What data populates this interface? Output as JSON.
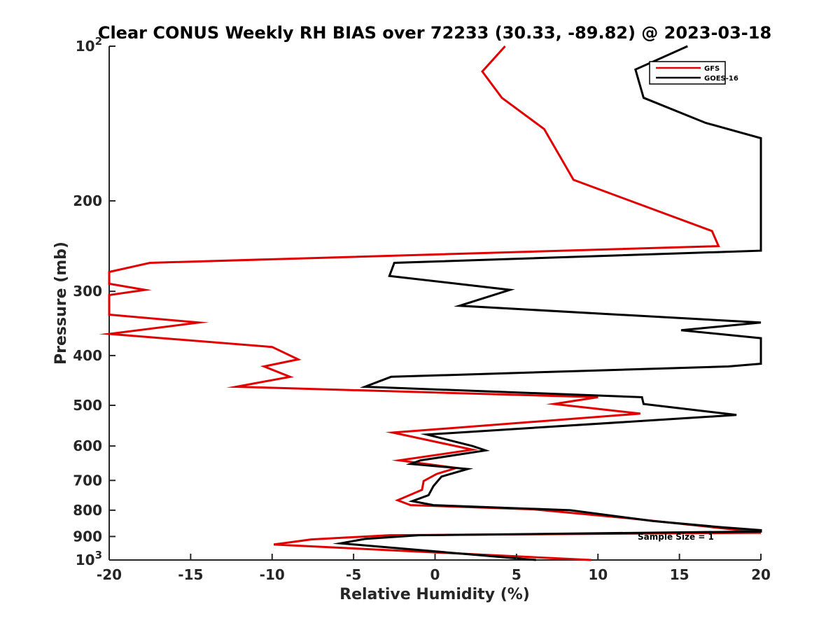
{
  "chart_data": {
    "type": "line",
    "title": "Clear CONUS Weekly RH BIAS over 72233 (30.33, -89.82) @ 2023-03-18",
    "xlabel": "Relative Humidity (%)",
    "ylabel": "Pressure (mb)",
    "xlim": [
      -20,
      20
    ],
    "ylim": [
      100,
      1000
    ],
    "y_scale": "log",
    "y_reversed": true,
    "x_ticks": [
      -20,
      -15,
      -10,
      -5,
      0,
      5,
      10,
      15,
      20
    ],
    "x_tick_labels": [
      "-20",
      "-15",
      "-10",
      "-5",
      "0",
      "5",
      "10",
      "15",
      "20"
    ],
    "y_ticks": [
      100,
      200,
      300,
      400,
      500,
      600,
      700,
      800,
      900,
      1000
    ],
    "y_tick_labels": [
      {
        "base": "10",
        "exp": "2"
      },
      {
        "base": "200",
        "exp": ""
      },
      {
        "base": "300",
        "exp": ""
      },
      {
        "base": "400",
        "exp": ""
      },
      {
        "base": "500",
        "exp": ""
      },
      {
        "base": "600",
        "exp": ""
      },
      {
        "base": "700",
        "exp": ""
      },
      {
        "base": "800",
        "exp": ""
      },
      {
        "base": "900",
        "exp": ""
      },
      {
        "base": "10",
        "exp": "3"
      }
    ],
    "grid": false,
    "legend_position": "top-right",
    "annotation": "Sample Size = 1",
    "series": [
      {
        "name": "GFS",
        "color": "#e00000",
        "points": [
          [
            4.3,
            100
          ],
          [
            2.9,
            112
          ],
          [
            4.1,
            126
          ],
          [
            6.7,
            145
          ],
          [
            8.5,
            182
          ],
          [
            17.0,
            229
          ],
          [
            17.4,
            245
          ],
          [
            -17.5,
            264
          ],
          [
            -20.0,
            275
          ],
          [
            -20.0,
            290
          ],
          [
            -17.8,
            298
          ],
          [
            -20.0,
            305
          ],
          [
            -20.0,
            333
          ],
          [
            -14.5,
            345
          ],
          [
            -20.0,
            363
          ],
          [
            -10.0,
            385
          ],
          [
            -8.4,
            407
          ],
          [
            -10.5,
            420
          ],
          [
            -8.9,
            440
          ],
          [
            -12.2,
            460
          ],
          [
            10.0,
            482
          ],
          [
            7.3,
            497
          ],
          [
            12.6,
            519
          ],
          [
            -2.6,
            565
          ],
          [
            2.3,
            610
          ],
          [
            -2.2,
            640
          ],
          [
            1.3,
            662
          ],
          [
            0.1,
            680
          ],
          [
            -0.7,
            702
          ],
          [
            -0.8,
            730
          ],
          [
            -2.3,
            765
          ],
          [
            -1.5,
            782
          ],
          [
            6.1,
            797
          ],
          [
            12.0,
            830
          ],
          [
            19.5,
            880
          ],
          [
            20.0,
            885
          ],
          [
            -2.8,
            895
          ],
          [
            -7.6,
            912
          ],
          [
            -9.9,
            933
          ],
          [
            9.6,
            1000
          ]
        ]
      },
      {
        "name": "GOES-16",
        "color": "#000000",
        "points": [
          [
            15.5,
            100
          ],
          [
            12.3,
            111
          ],
          [
            12.8,
            126
          ],
          [
            16.6,
            141
          ],
          [
            20.0,
            151
          ],
          [
            20.0,
            250
          ],
          [
            -2.5,
            264
          ],
          [
            -2.8,
            280
          ],
          [
            4.6,
            298
          ],
          [
            1.5,
            320
          ],
          [
            20.0,
            345
          ],
          [
            15.1,
            357
          ],
          [
            20.0,
            370
          ],
          [
            20.0,
            415
          ],
          [
            18.0,
            420
          ],
          [
            -2.7,
            440
          ],
          [
            -4.3,
            460
          ],
          [
            12.7,
            482
          ],
          [
            12.8,
            497
          ],
          [
            18.5,
            522
          ],
          [
            -0.5,
            570
          ],
          [
            2.3,
            600
          ],
          [
            3.1,
            612
          ],
          [
            -0.9,
            640
          ],
          [
            -1.5,
            650
          ],
          [
            2.0,
            665
          ],
          [
            0.4,
            688
          ],
          [
            -0.1,
            718
          ],
          [
            -0.4,
            748
          ],
          [
            -1.4,
            768
          ],
          [
            -0.1,
            782
          ],
          [
            8.3,
            800
          ],
          [
            13.4,
            840
          ],
          [
            17.5,
            863
          ],
          [
            20.0,
            875
          ],
          [
            20.0,
            880
          ],
          [
            -1.0,
            895
          ],
          [
            -4.3,
            910
          ],
          [
            -5.8,
            928
          ],
          [
            6.2,
            1000
          ]
        ]
      }
    ]
  }
}
